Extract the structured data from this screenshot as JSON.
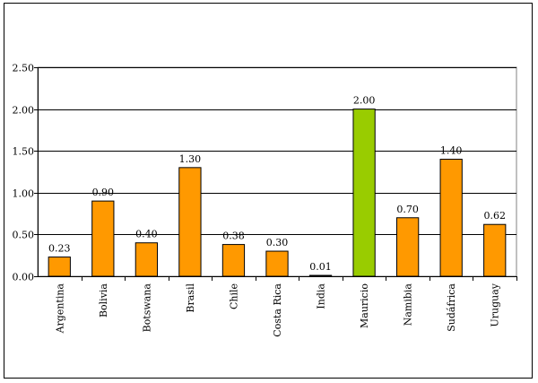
{
  "chart_data": {
    "type": "bar",
    "title": "",
    "xlabel": "",
    "ylabel": "",
    "ylim": [
      0,
      2.5
    ],
    "yticks": [
      "0.00",
      "0.50",
      "1.00",
      "1.50",
      "2.00",
      "2.50"
    ],
    "grid": true,
    "legend": "none",
    "categories": [
      "Argentina",
      "Bolivia",
      "Botswana",
      "Brasil",
      "Chile",
      "Costa Rica",
      "India",
      "Mauricio",
      "Namibia",
      "Sudáfrica",
      "Uruguay"
    ],
    "values": [
      0.23,
      0.9,
      0.4,
      1.3,
      0.38,
      0.3,
      0.01,
      2.0,
      0.7,
      1.4,
      0.62
    ],
    "value_labels": [
      "0.23",
      "0.90",
      "0.40",
      "1.30",
      "0.38",
      "0.30",
      "0.01",
      "2.00",
      "0.70",
      "1.40",
      "0.62"
    ],
    "colors": {
      "default_bar": "#ff9900",
      "highlight_bar": "#99cc00",
      "highlight_category": "Mauricio",
      "bar_stroke": "#000000",
      "grid": "#000000"
    }
  }
}
